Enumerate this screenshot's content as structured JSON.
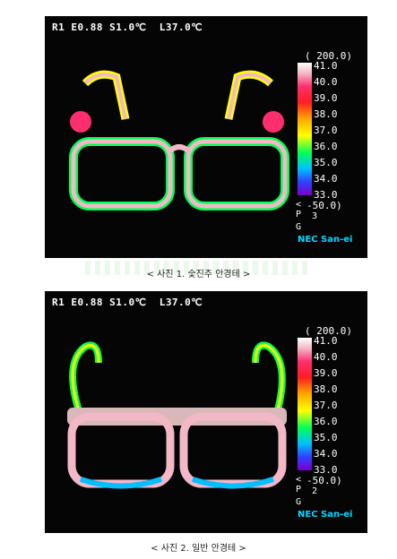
{
  "images": [
    {
      "header": "R1 E0.88 S1.0℃  L37.0℃",
      "range_label": "( 200.0)",
      "scale_ticks": [
        "41.0",
        "40.0",
        "39.0",
        "38.0",
        "37.0",
        "36.0",
        "35.0",
        "34.0",
        "33.0"
      ],
      "bottom_value": "-50.0)",
      "side_chars": [
        "<",
        "P",
        "3",
        "G"
      ],
      "brand": "NEC San-ei",
      "caption": "< 사진 1. 숯진주 안경테 >"
    },
    {
      "header": "R1 E0.88 S1.0℃  L37.0℃",
      "range_label": "( 200.0)",
      "scale_ticks": [
        "41.0",
        "40.0",
        "39.0",
        "38.0",
        "37.0",
        "36.0",
        "35.0",
        "34.0",
        "33.0"
      ],
      "bottom_value": "-50.0)",
      "side_chars": [
        "<",
        "P",
        "2",
        "G"
      ],
      "brand": "NEC San-ei",
      "caption": "< 사진 2. 일반 안경테 >"
    }
  ],
  "colors": {
    "hot": "#f2b8c6",
    "warm": "#ff2e6e",
    "mid": "#ffff00",
    "cool": "#00ff55",
    "cold": "#3040ff"
  }
}
